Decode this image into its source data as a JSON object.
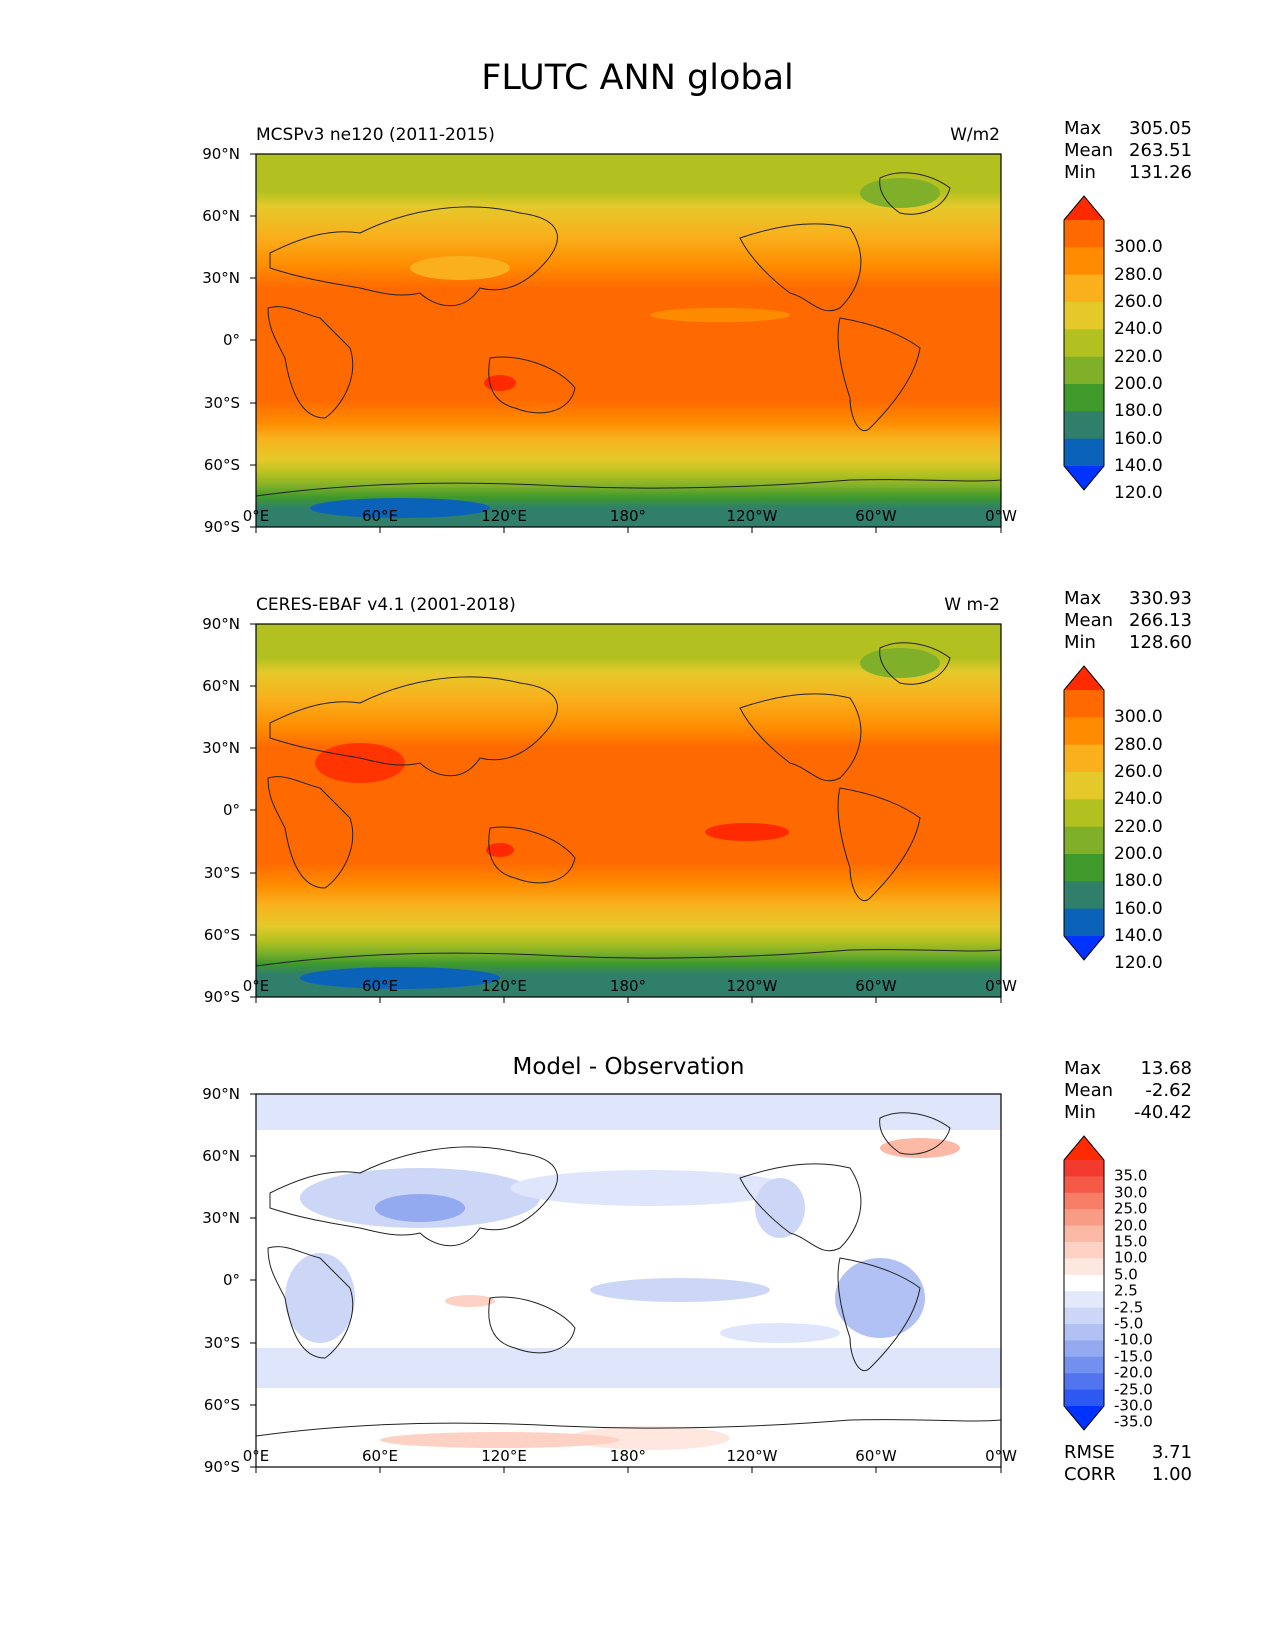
{
  "figure": {
    "title": "FLUTC ANN global"
  },
  "axes": {
    "y_ticks": [
      "90°N",
      "60°N",
      "30°N",
      "0°",
      "30°S",
      "60°S",
      "90°S"
    ],
    "x_ticks": [
      "0°E",
      "60°E",
      "120°E",
      "180°",
      "120°W",
      "60°W",
      "0°W"
    ]
  },
  "panels": [
    {
      "left_title": "MCSPv3 ne120 (2011-2015)",
      "right_title": "W/m2",
      "center_title": "",
      "stats": {
        "max_label": "Max",
        "max": "305.05",
        "mean_label": "Mean",
        "mean": "263.51",
        "min_label": "Min",
        "min": "131.26"
      }
    },
    {
      "left_title": "CERES-EBAF v4.1 (2001-2018)",
      "right_title": "W m-2",
      "center_title": "",
      "stats": {
        "max_label": "Max",
        "max": "330.93",
        "mean_label": "Mean",
        "mean": "266.13",
        "min_label": "Min",
        "min": "128.60"
      }
    },
    {
      "left_title": "",
      "right_title": "",
      "center_title": "Model - Observation",
      "stats": {
        "max_label": "Max",
        "max": "13.68",
        "mean_label": "Mean",
        "mean": "-2.62",
        "min_label": "Min",
        "min": "-40.42"
      }
    }
  ],
  "colorbars": {
    "absolute": {
      "ticks": [
        "300.0",
        "280.0",
        "260.0",
        "240.0",
        "220.0",
        "200.0",
        "180.0",
        "160.0",
        "140.0",
        "120.0"
      ],
      "colors": [
        "#ff2a00",
        "#ff6a00",
        "#ff8c00",
        "#f9b01c",
        "#e5c92b",
        "#b2c11f",
        "#80b02a",
        "#3f9a2b",
        "#2f7f6b",
        "#0a63b8",
        "#0033ff"
      ]
    },
    "difference": {
      "ticks": [
        "35.0",
        "30.0",
        "25.0",
        "20.0",
        "15.0",
        "10.0",
        "5.0",
        "2.5",
        "-2.5",
        "-5.0",
        "-10.0",
        "-15.0",
        "-20.0",
        "-25.0",
        "-30.0",
        "-35.0"
      ],
      "colors": [
        "#ff2a00",
        "#f23b2e",
        "#f55a48",
        "#f77d66",
        "#f99c85",
        "#fbb9a6",
        "#fdd1c4",
        "#fde7de",
        "#ffffff",
        "#e3e9fb",
        "#ccd6f7",
        "#b1c1f4",
        "#93a9f0",
        "#7290ee",
        "#5274ef",
        "#2e58f2",
        "#0033ff"
      ]
    }
  },
  "metrics": {
    "rmse_label": "RMSE",
    "rmse": "3.71",
    "corr_label": "CORR",
    "corr": "1.00"
  },
  "colors": {
    "land_outline": "#222222",
    "tropics": "#ff6a00",
    "subtropics": "#ff8c00",
    "midlat": "#f9b01c",
    "polar": "#b2c11f",
    "antarctic": "#2f7f6b"
  }
}
